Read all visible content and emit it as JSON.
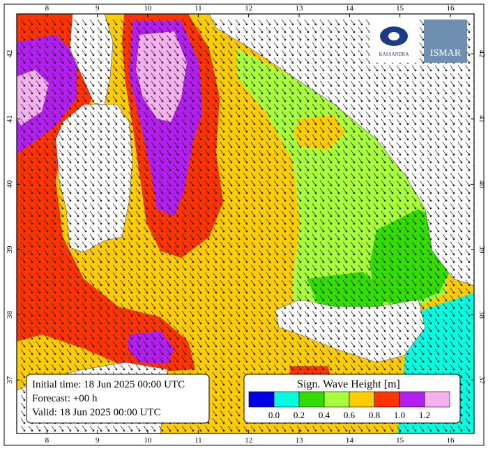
{
  "map": {
    "lon_ticks": [
      8,
      9,
      10,
      11,
      12,
      13,
      14,
      15,
      16
    ],
    "lat_ticks": [
      37,
      38,
      39,
      40,
      41,
      42
    ],
    "lon_range": [
      7.4,
      16.47
    ],
    "lat_range": [
      36.18,
      42.61
    ],
    "info": [
      "Initial time: 18 Jun 2025 00:00 UTC",
      "Forecast: +00 h",
      "Valid: 18 Jun 2025 00:00 UTC"
    ],
    "legend": {
      "title": "Sign. Wave Height [m]",
      "labels": [
        "0.0",
        "0.2",
        "0.4",
        "0.6",
        "0.8",
        "1.0",
        "1.2"
      ],
      "colors": [
        "#0000e6",
        "#00ffe0",
        "#33dd00",
        "#a8ff3c",
        "#ffcc00",
        "#ff3300",
        "#b31ff0",
        "#f5b0f0"
      ]
    },
    "logos": [
      "KASSANDRA",
      "ISMAR"
    ]
  }
}
